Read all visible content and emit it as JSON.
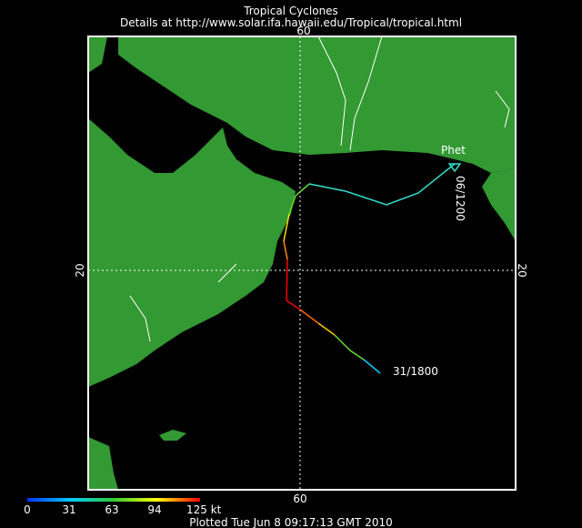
{
  "header": {
    "title": "Tropical Cyclones",
    "subtitle": "Details at http://www.solar.ifa.hawaii.edu/Tropical/tropical.html"
  },
  "map": {
    "lon_labels": [
      "60",
      "60"
    ],
    "lat_labels": [
      "20",
      "20"
    ],
    "storm": {
      "name": "Phet",
      "end_label": "06/1200",
      "start_label": "31/1800"
    }
  },
  "legend": {
    "labels": [
      "0",
      "31",
      "63",
      "94",
      "125 kt"
    ]
  },
  "footer": {
    "text": "Plotted Tue Jun 8 09:17:13 GMT 2010"
  }
}
